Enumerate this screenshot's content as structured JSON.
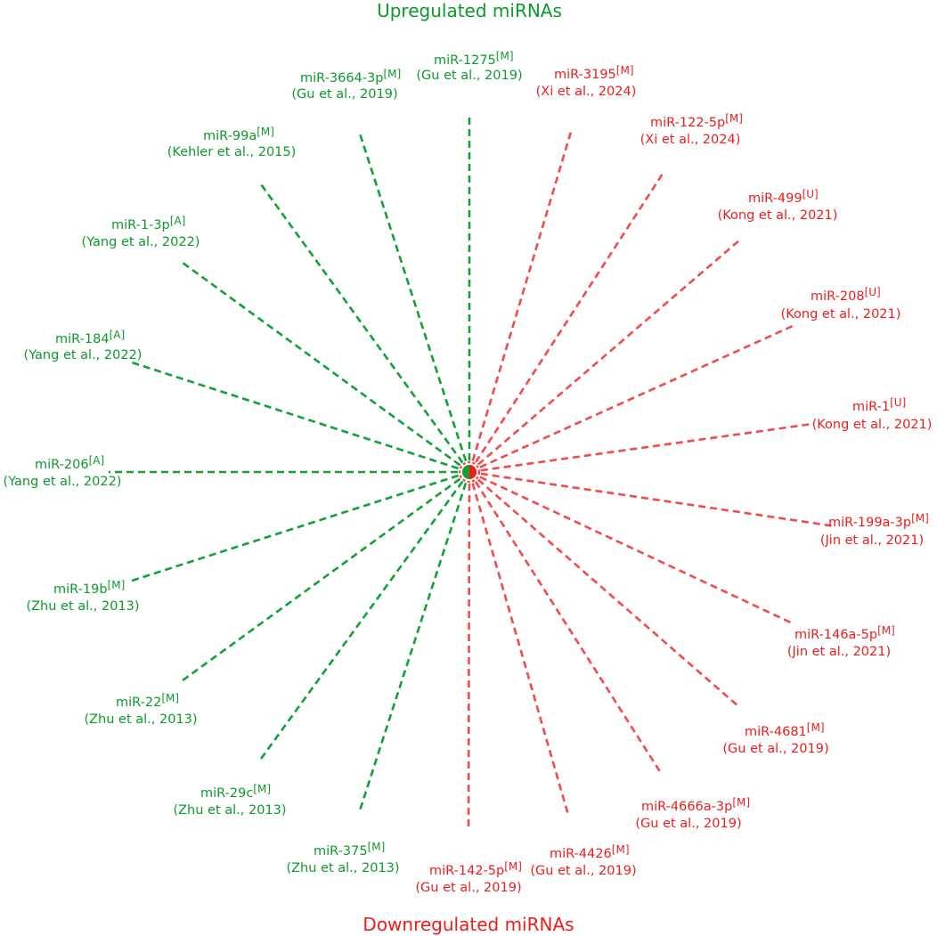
{
  "titles": {
    "top": "Upregulated miRNAs",
    "bottom": "Downregulated miRNAs"
  },
  "colors": {
    "green": "#0c9a2a",
    "red": "#f01c1c",
    "green_line": "#12a133",
    "red_line": "#f24b4b"
  },
  "green_mirnas": [
    {
      "name": "miR-1275",
      "tag": "[M]",
      "ref": "(Gu et al., 2019)"
    },
    {
      "name": "miR-3664-3p",
      "tag": "[M]",
      "ref": "(Gu et al., 2019)"
    },
    {
      "name": "miR-99a",
      "tag": "[M]",
      "ref": "(Kehler et al., 2015)"
    },
    {
      "name": "miR-1-3p",
      "tag": "[A]",
      "ref": "(Yang et al., 2022)"
    },
    {
      "name": "miR-184",
      "tag": "[A]",
      "ref": "(Yang et al., 2022)"
    },
    {
      "name": "miR-206",
      "tag": "[A]",
      "ref": "(Yang et al., 2022)"
    },
    {
      "name": "miR-19b",
      "tag": "[M]",
      "ref": "(Zhu et al., 2013)"
    },
    {
      "name": "miR-22",
      "tag": "[M]",
      "ref": "(Zhu et al., 2013)"
    },
    {
      "name": "miR-29c",
      "tag": "[M]",
      "ref": "(Zhu et al., 2013)"
    },
    {
      "name": "miR-375",
      "tag": "[M]",
      "ref": "(Zhu et al., 2013)"
    }
  ],
  "red_mirnas": [
    {
      "name": "miR-3195",
      "tag": "[M]",
      "ref": "(Xi et al., 2024)"
    },
    {
      "name": "miR-122-5p",
      "tag": "[M]",
      "ref": "(Xi et al., 2024)"
    },
    {
      "name": "miR-499",
      "tag": "[U]",
      "ref": "(Kong et al., 2021)"
    },
    {
      "name": "miR-208",
      "tag": "[U]",
      "ref": "(Kong et al., 2021)"
    },
    {
      "name": "miR-1",
      "tag": "[U]",
      "ref": "(Kong et al., 2021)"
    },
    {
      "name": "miR-199a-3p",
      "tag": "[M]",
      "ref": "(Jin et al., 2021)"
    },
    {
      "name": "miR-146a-5p",
      "tag": "[M]",
      "ref": "(Jin et al., 2021)"
    },
    {
      "name": "miR-4681",
      "tag": "[M]",
      "ref": "(Gu et al., 2019)"
    },
    {
      "name": "miR-4666a-3p",
      "tag": "[M]",
      "ref": "(Gu et al., 2019)"
    },
    {
      "name": "miR-4426",
      "tag": "[M]",
      "ref": "(Gu et al., 2019)"
    },
    {
      "name": "miR-142-5p",
      "tag": "[M]",
      "ref": "(Gu et al., 2019)"
    }
  ]
}
